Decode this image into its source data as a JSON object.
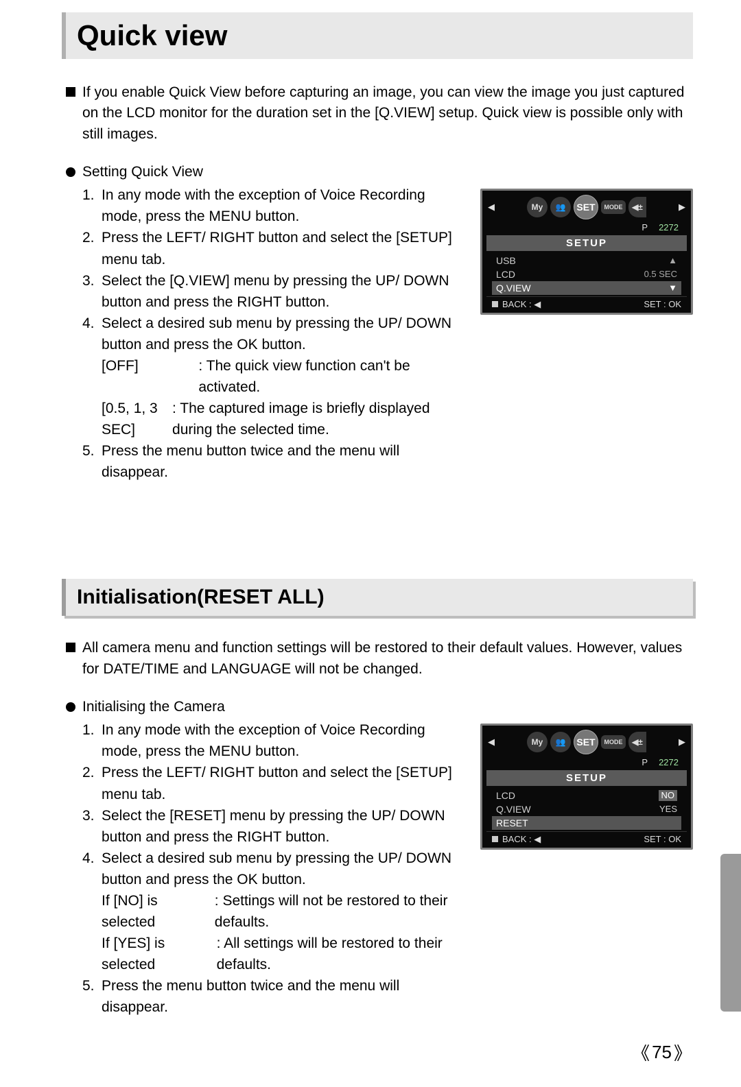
{
  "page": {
    "title1": "Quick view",
    "title2": "Initialisation(RESET ALL)",
    "pageNumber": "75"
  },
  "section1": {
    "intro": "If you enable Quick View before capturing an image, you can view the image you just captured on the LCD monitor for the duration set in the [Q.VIEW] setup. Quick view is possible only with still images.",
    "subhead": "Setting Quick View",
    "steps": {
      "s1": "In any mode with the exception of Voice Recording mode, press the MENU button.",
      "s2": "Press the LEFT/ RIGHT button and select the [SETUP] menu tab.",
      "s3": "Select the [Q.VIEW] menu by pressing the UP/ DOWN button and press the RIGHT button.",
      "s4": "Select a desired sub menu by pressing the UP/ DOWN button and press the OK button.",
      "s5": "Press the menu button twice and the menu will disappear."
    },
    "options": {
      "k1": "[OFF]",
      "v1": ": The quick view function can't be activated.",
      "k2": "[0.5, 1, 3 SEC]",
      "v2": ": The captured image is briefly displayed during the selected time."
    },
    "lcd": {
      "setup": "SETUP",
      "row1_label": "USB",
      "row1_val": "",
      "row2_label": "LCD",
      "row2_val": "0.5 SEC",
      "row3_label": "Q.VIEW",
      "row3_val": "",
      "back": "BACK :",
      "setok": "SET : OK",
      "mode_p": "P",
      "mode_res": "2272",
      "tab_set": "SET",
      "tab_mode": "MODE",
      "tab_my": "My"
    }
  },
  "section2": {
    "intro": "All camera menu and function settings will be restored to their default values. However, values for DATE/TIME and LANGUAGE will not be changed.",
    "subhead": "Initialising the Camera",
    "steps": {
      "s1": "In any mode with the exception of Voice Recording mode, press the MENU button.",
      "s2": "Press the LEFT/ RIGHT button and select the [SETUP] menu tab.",
      "s3": "Select the [RESET] menu by pressing the UP/ DOWN button and press the RIGHT button.",
      "s4": "Select a desired sub menu by pressing the UP/ DOWN button and press the OK button.",
      "s5": "Press the menu button twice and the menu will disappear."
    },
    "options": {
      "k1": "If [NO] is selected",
      "v1": ": Settings will not be restored to their defaults.",
      "k2": "If [YES] is selected",
      "v2": ": All settings will be restored to their defaults."
    },
    "lcd": {
      "setup": "SETUP",
      "row1_label": "LCD",
      "row1_val": "NO",
      "row2_label": "Q.VIEW",
      "row2_val": "YES",
      "row3_label": "RESET",
      "row3_val": "",
      "back": "BACK :",
      "setok": "SET : OK",
      "mode_p": "P",
      "mode_res": "2272",
      "tab_set": "SET",
      "tab_mode": "MODE",
      "tab_my": "My"
    }
  }
}
